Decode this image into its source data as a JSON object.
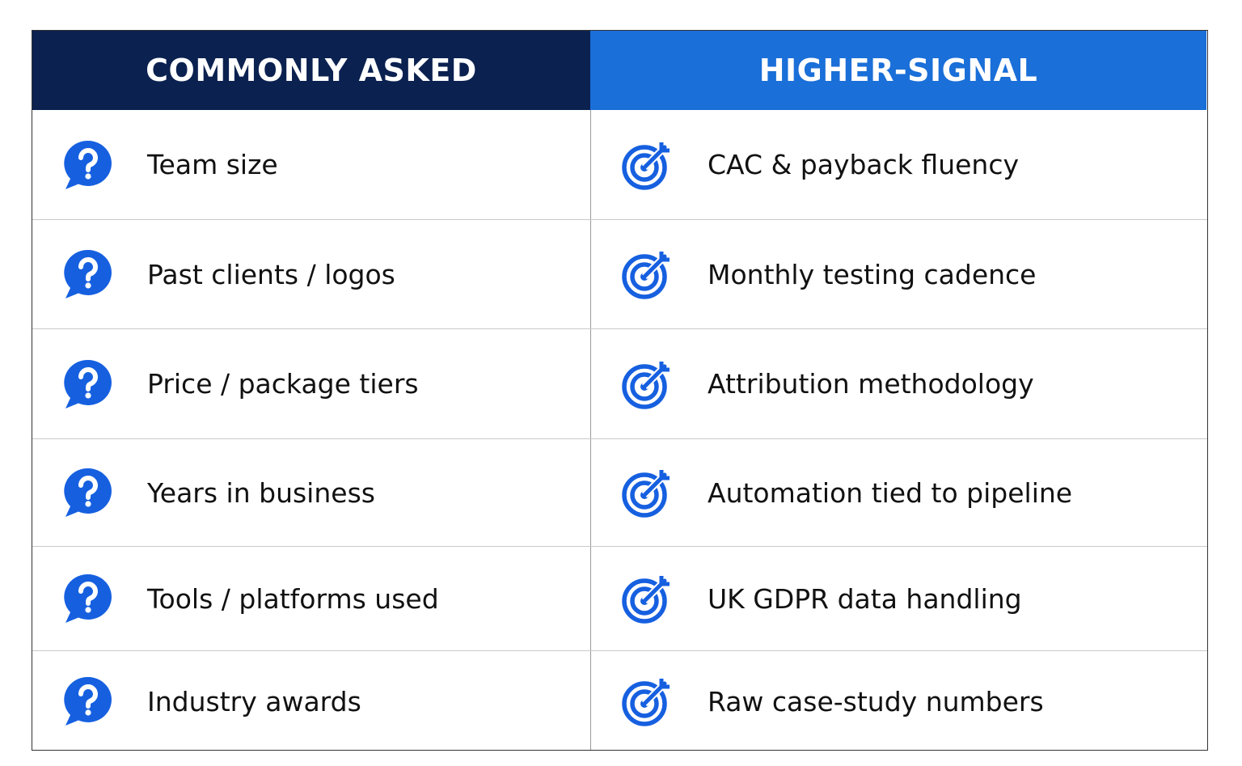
{
  "table": {
    "header": [
      "COMMONLY ASKED",
      "HIGHER-SIGNAL"
    ],
    "rows": [
      [
        "Team size",
        "CAC & payback fluency"
      ],
      [
        "Past clients / logos",
        "Monthly testing cadence"
      ],
      [
        "Price / package tiers",
        "Attribution methodology"
      ],
      [
        "Years in business",
        "Automation tied to pipeline"
      ],
      [
        "Tools / platforms used",
        "UK GDPR data handling"
      ],
      [
        "Industry awards",
        "Raw case-study numbers"
      ]
    ]
  }
}
